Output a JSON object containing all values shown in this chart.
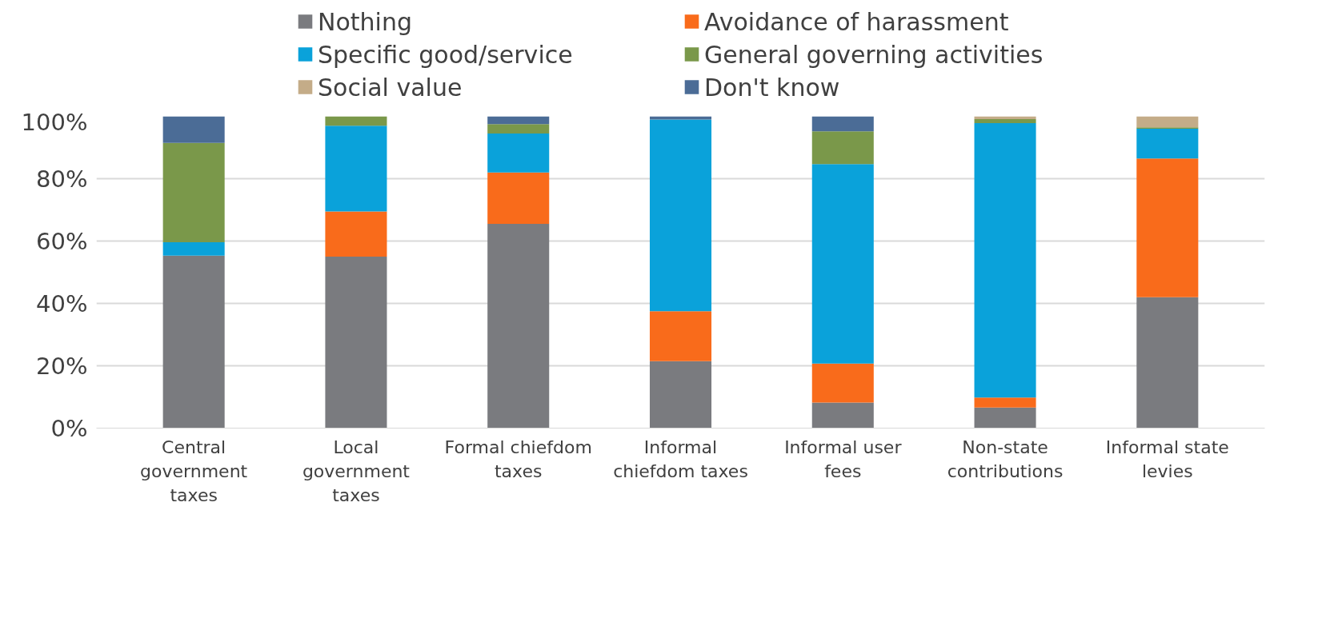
{
  "chart_data": {
    "type": "bar",
    "stacked": true,
    "categories": [
      "Central government taxes",
      "Local government taxes",
      "Formal chiefdom taxes",
      "Informal chiefdom taxes",
      "Informal user fees",
      "Non-state contributions",
      "Informal state levies"
    ],
    "series": [
      {
        "name": "Nothing",
        "color": "#7a7b7f",
        "values": [
          55.3,
          55,
          65.5,
          21.5,
          8.2,
          6.6,
          42
        ]
      },
      {
        "name": "Avoidance of harassment",
        "color": "#f96b1b",
        "values": [
          0,
          14.5,
          16.5,
          16,
          12.5,
          3.2,
          44.5
        ]
      },
      {
        "name": "Specific good/service",
        "color": "#0aa2da",
        "values": [
          4.3,
          27.5,
          12.5,
          61.5,
          64,
          88,
          9.5
        ]
      },
      {
        "name": "General governing activities",
        "color": "#7a984a",
        "values": [
          31.9,
          3,
          3,
          0,
          10.5,
          1.3,
          0.5
        ]
      },
      {
        "name": "Social value",
        "color": "#c4ac88",
        "values": [
          0,
          0,
          0,
          0,
          0,
          0.9,
          3.5
        ]
      },
      {
        "name": "Don't know",
        "color": "#4b6c96",
        "values": [
          8.5,
          0,
          2.5,
          1,
          4.8,
          0,
          0
        ]
      }
    ],
    "ylim": [
      0,
      100
    ],
    "yticks": [
      {
        "value": 0,
        "label": "0%"
      },
      {
        "value": 20,
        "label": "20%"
      },
      {
        "value": 40,
        "label": "40%"
      },
      {
        "value": 60,
        "label": "60%"
      },
      {
        "value": 80,
        "label": "80%"
      },
      {
        "value": 100,
        "label": "100%"
      }
    ],
    "grid": "y",
    "legend": "top"
  }
}
